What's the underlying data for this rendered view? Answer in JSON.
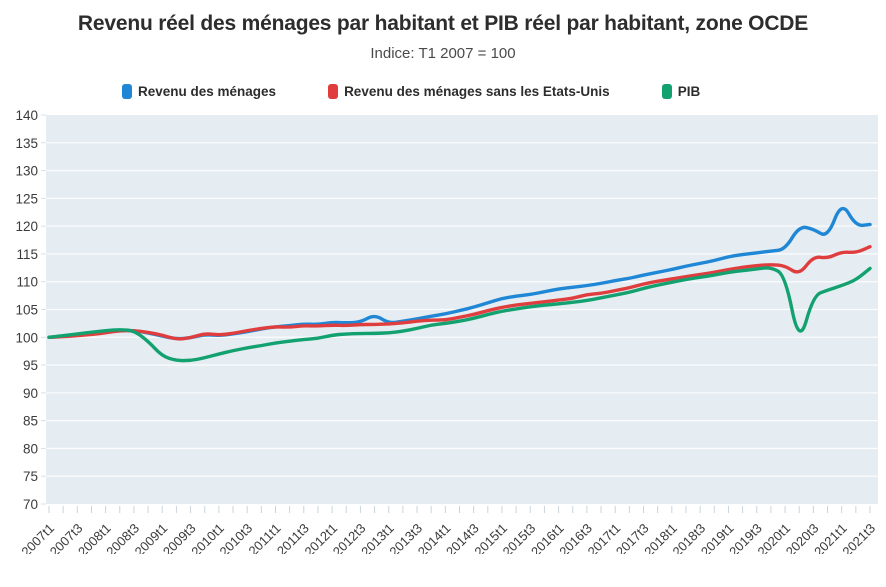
{
  "page": {
    "title": "Revenu réel des ménages par habitant et PIB réel par habitant, zone OCDE",
    "subtitle": "Indice: T1 2007 = 100"
  },
  "legend": {
    "items": [
      {
        "label": "Revenu des ménages",
        "color": "#1f87d5"
      },
      {
        "label": "Revenu des ménages sans les Etats-Unis",
        "color": "#e03e3e"
      },
      {
        "label": "PIB",
        "color": "#13a170"
      }
    ]
  },
  "chart_data": {
    "type": "line",
    "title": "Revenu réel des ménages par habitant et PIB réel par habitant, zone OCDE",
    "subtitle": "Indice: T1 2007 = 100",
    "x": [
      "2007t1",
      "2007t2",
      "2007t3",
      "2007t4",
      "2008t1",
      "2008t2",
      "2008t3",
      "2008t4",
      "2009t1",
      "2009t2",
      "2009t3",
      "2009t4",
      "2010t1",
      "2010t2",
      "2010t3",
      "2010t4",
      "2011t1",
      "2011t2",
      "2011t3",
      "2011t4",
      "2012t1",
      "2012t2",
      "2012t3",
      "2012t4",
      "2013t1",
      "2013t2",
      "2013t3",
      "2013t4",
      "2014t1",
      "2014t2",
      "2014t3",
      "2014t4",
      "2015t1",
      "2015t2",
      "2015t3",
      "2015t4",
      "2016t1",
      "2016t2",
      "2016t3",
      "2016t4",
      "2017t1",
      "2017t2",
      "2017t3",
      "2017t4",
      "2018t1",
      "2018t2",
      "2018t3",
      "2018t4",
      "2019t1",
      "2019t2",
      "2019t3",
      "2019t4",
      "2020t1",
      "2020t2",
      "2020t3",
      "2020t4",
      "2021t1",
      "2021t2",
      "2021t3"
    ],
    "x_tick_every": 2,
    "ylim": [
      70,
      140
    ],
    "ytick_step": 5,
    "grid": "horizontal",
    "plot_bg": "#e5edf2",
    "grid_color": "#fafcfd",
    "tick_color": "#c9d4da",
    "axis_text_color": "#3b3b3b",
    "legend_position": "top",
    "series": [
      {
        "name": "Revenu des ménages",
        "color": "#1f87d5",
        "values": [
          100,
          100.2,
          100.4,
          100.6,
          100.9,
          101.3,
          101.2,
          100.8,
          100.2,
          99.7,
          99.9,
          100.5,
          100.3,
          100.6,
          101.0,
          101.5,
          101.9,
          102.1,
          102.4,
          102.3,
          102.7,
          102.6,
          102.7,
          104.1,
          102.5,
          102.9,
          103.3,
          103.8,
          104.2,
          104.8,
          105.4,
          106.2,
          107.0,
          107.4,
          107.7,
          108.2,
          108.7,
          109.0,
          109.3,
          109.7,
          110.2,
          110.6,
          111.2,
          111.7,
          112.2,
          112.8,
          113.3,
          113.8,
          114.5,
          114.9,
          115.2,
          115.5,
          115.8,
          120.0,
          119.5,
          117.9,
          124.5,
          120.0,
          120.3
        ]
      },
      {
        "name": "Revenu des ménages sans les Etats-Unis",
        "color": "#e03e3e",
        "values": [
          100,
          100.1,
          100.3,
          100.5,
          100.8,
          101.2,
          101.2,
          100.9,
          100.4,
          99.6,
          99.9,
          100.7,
          100.4,
          100.7,
          101.2,
          101.6,
          101.9,
          101.8,
          102.1,
          102.0,
          102.2,
          102.1,
          102.3,
          102.3,
          102.4,
          102.6,
          102.9,
          103.1,
          103.1,
          103.6,
          104.1,
          104.8,
          105.4,
          105.8,
          106.1,
          106.4,
          106.7,
          107.0,
          107.7,
          107.9,
          108.4,
          108.9,
          109.6,
          110.1,
          110.5,
          110.9,
          111.3,
          111.7,
          112.2,
          112.6,
          112.9,
          113.1,
          112.9,
          111.2,
          114.6,
          114.2,
          115.4,
          115.2,
          116.3
        ]
      },
      {
        "name": "PIB",
        "color": "#13a170",
        "values": [
          100,
          100.3,
          100.6,
          100.9,
          101.2,
          101.4,
          101.2,
          99.3,
          96.6,
          95.8,
          95.8,
          96.3,
          97.0,
          97.6,
          98.1,
          98.5,
          99.0,
          99.3,
          99.6,
          99.8,
          100.4,
          100.6,
          100.7,
          100.7,
          100.8,
          101.1,
          101.6,
          102.2,
          102.5,
          102.9,
          103.4,
          104.1,
          104.7,
          105.1,
          105.5,
          105.8,
          106.0,
          106.3,
          106.6,
          107.1,
          107.6,
          108.1,
          108.8,
          109.4,
          109.9,
          110.4,
          110.8,
          111.2,
          111.7,
          112.0,
          112.3,
          112.6,
          111.2,
          98.5,
          107.5,
          108.5,
          109.3,
          110.3,
          112.4
        ]
      }
    ]
  }
}
